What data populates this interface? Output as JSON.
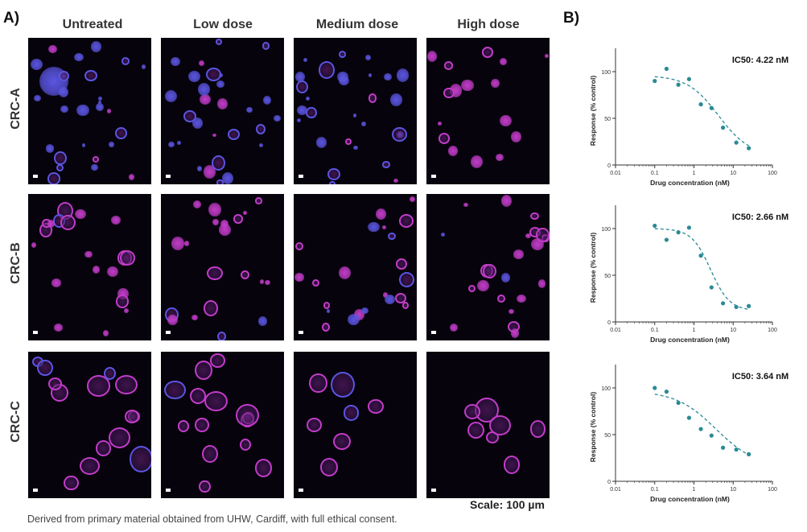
{
  "panel_a_label": "A)",
  "panel_b_label": "B)",
  "columns": [
    "Untreated",
    "Low dose",
    "Medium dose",
    "High dose"
  ],
  "rows": [
    "CRC-A",
    "CRC-B",
    "CRC-C"
  ],
  "caption": "Derived from primary material obtained from UHW, Cardiff, with full ethical consent.",
  "scale_text": "Scale: 100 µm",
  "colors": {
    "curve": "#2a8a93",
    "points": "#2a8a93",
    "tile_background": "#07030d",
    "organoid_blue": "#5a55e0",
    "organoid_magenta": "#c23cc8"
  },
  "chart_data": [
    {
      "type": "scatter",
      "title": "",
      "annotation": "IC50: 4.22 nM",
      "xlabel": "Drug concentration (nM)",
      "ylabel": "Response (% control)",
      "x_scale": "log",
      "xlim": [
        0.01,
        100
      ],
      "ylim": [
        0,
        125
      ],
      "x_ticks": [
        "0.01",
        "0.1",
        "1",
        "10",
        "100"
      ],
      "y_ticks": [
        "0",
        "50",
        "100"
      ],
      "points": {
        "x": [
          0.1,
          0.2,
          0.4,
          0.75,
          1.5,
          2.8,
          5.5,
          12,
          25
        ],
        "y": [
          90,
          103,
          86,
          92,
          65,
          61,
          40,
          24,
          18
        ]
      },
      "fit": {
        "ic50": 4.22,
        "top": 96,
        "bottom": 10,
        "hill": 1.1
      }
    },
    {
      "type": "scatter",
      "title": "",
      "annotation": "IC50: 2.66 nM",
      "xlabel": "Drug concentration (nM)",
      "ylabel": "Response (% control)",
      "x_scale": "log",
      "xlim": [
        0.01,
        100
      ],
      "ylim": [
        0,
        125
      ],
      "x_ticks": [
        "0.01",
        "0.1",
        "1",
        "10",
        "100"
      ],
      "y_ticks": [
        "0",
        "50",
        "100"
      ],
      "points": {
        "x": [
          0.1,
          0.2,
          0.4,
          0.75,
          1.5,
          2.8,
          5.5,
          12,
          25
        ],
        "y": [
          103,
          88,
          96,
          101,
          71,
          37,
          20,
          16,
          17
        ]
      },
      "fit": {
        "ic50": 2.66,
        "top": 100,
        "bottom": 12,
        "hill": 1.8
      }
    },
    {
      "type": "scatter",
      "title": "",
      "annotation": "IC50: 3.64 nM",
      "xlabel": "Drug concentration (nM)",
      "ylabel": "Response (% control)",
      "x_scale": "log",
      "xlim": [
        0.01,
        100
      ],
      "ylim": [
        0,
        125
      ],
      "x_ticks": [
        "0.01",
        "0.1",
        "1",
        "10",
        "100"
      ],
      "y_ticks": [
        "0",
        "50",
        "100"
      ],
      "points": {
        "x": [
          0.1,
          0.2,
          0.4,
          0.75,
          1.5,
          2.8,
          5.5,
          12,
          25
        ],
        "y": [
          100,
          96,
          84,
          68,
          56,
          49,
          36,
          34,
          29
        ]
      },
      "fit": {
        "ic50": 3.64,
        "top": 97,
        "bottom": 15,
        "hill": 0.85
      }
    }
  ]
}
